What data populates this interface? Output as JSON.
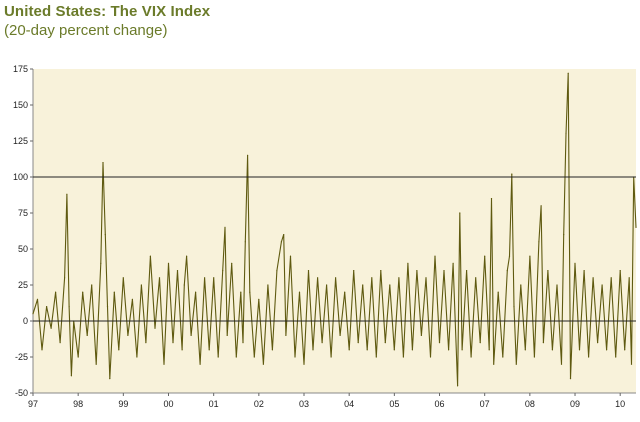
{
  "chart_data": {
    "type": "line",
    "title": "United States: The VIX Index",
    "subtitle": "(20-day percent change)",
    "xlabel": "",
    "ylabel": "",
    "ylim": [
      -50,
      175
    ],
    "y_ticks": [
      175,
      150,
      125,
      100,
      75,
      50,
      25,
      0,
      -25,
      -50
    ],
    "x_ticks": [
      "97",
      "98",
      "99",
      "00",
      "01",
      "02",
      "03",
      "04",
      "05",
      "06",
      "07",
      "08",
      "09",
      "10"
    ],
    "xlim": [
      1997.0,
      2010.35
    ],
    "reference_lines": [
      0,
      100
    ],
    "grid": false,
    "plot_background": "#f8f2da",
    "series": [
      {
        "color": "#5f5a10",
        "x": [
          1997.0,
          1997.1,
          1997.2,
          1997.3,
          1997.4,
          1997.5,
          1997.6,
          1997.7,
          1997.75,
          1997.8,
          1997.85,
          1997.9,
          1998.0,
          1998.1,
          1998.2,
          1998.3,
          1998.4,
          1998.5,
          1998.55,
          1998.6,
          1998.65,
          1998.7,
          1998.8,
          1998.9,
          1999.0,
          1999.1,
          1999.2,
          1999.3,
          1999.4,
          1999.5,
          1999.6,
          1999.7,
          1999.8,
          1999.9,
          2000.0,
          2000.1,
          2000.2,
          2000.3,
          2000.35,
          2000.4,
          2000.5,
          2000.6,
          2000.7,
          2000.8,
          2000.9,
          2001.0,
          2001.1,
          2001.2,
          2001.25,
          2001.3,
          2001.4,
          2001.5,
          2001.6,
          2001.65,
          2001.7,
          2001.75,
          2001.8,
          2001.9,
          2002.0,
          2002.1,
          2002.2,
          2002.3,
          2002.4,
          2002.5,
          2002.55,
          2002.6,
          2002.7,
          2002.8,
          2002.9,
          2003.0,
          2003.1,
          2003.2,
          2003.3,
          2003.4,
          2003.5,
          2003.6,
          2003.7,
          2003.8,
          2003.9,
          2004.0,
          2004.1,
          2004.2,
          2004.3,
          2004.4,
          2004.5,
          2004.6,
          2004.7,
          2004.8,
          2004.9,
          2005.0,
          2005.1,
          2005.2,
          2005.3,
          2005.4,
          2005.5,
          2005.6,
          2005.7,
          2005.8,
          2005.9,
          2006.0,
          2006.1,
          2006.2,
          2006.3,
          2006.4,
          2006.45,
          2006.5,
          2006.6,
          2006.7,
          2006.8,
          2006.9,
          2007.0,
          2007.1,
          2007.15,
          2007.2,
          2007.3,
          2007.4,
          2007.5,
          2007.55,
          2007.6,
          2007.65,
          2007.7,
          2007.8,
          2007.9,
          2008.0,
          2008.1,
          2008.2,
          2008.25,
          2008.3,
          2008.4,
          2008.5,
          2008.6,
          2008.7,
          2008.75,
          2008.8,
          2008.85,
          2008.9,
          2009.0,
          2009.1,
          2009.2,
          2009.3,
          2009.4,
          2009.5,
          2009.6,
          2009.7,
          2009.8,
          2009.9,
          2010.0,
          2010.1,
          2010.2,
          2010.25,
          2010.3,
          2010.35
        ],
        "values": [
          5,
          15,
          -20,
          10,
          -5,
          20,
          -15,
          30,
          88,
          10,
          -38,
          0,
          -25,
          20,
          -10,
          25,
          -30,
          40,
          110,
          60,
          10,
          -40,
          20,
          -20,
          30,
          -10,
          15,
          -25,
          25,
          -15,
          45,
          -5,
          30,
          -30,
          40,
          -15,
          35,
          -20,
          25,
          45,
          -10,
          20,
          -30,
          30,
          -20,
          30,
          -25,
          35,
          65,
          -10,
          40,
          -25,
          20,
          -15,
          55,
          115,
          20,
          -25,
          15,
          -30,
          25,
          -20,
          35,
          55,
          60,
          -10,
          45,
          -25,
          20,
          -30,
          35,
          -20,
          30,
          -15,
          25,
          -25,
          30,
          -10,
          20,
          -20,
          35,
          -15,
          25,
          -20,
          30,
          -25,
          35,
          -15,
          25,
          -20,
          30,
          -25,
          40,
          -20,
          35,
          -10,
          30,
          -25,
          45,
          -15,
          35,
          -20,
          40,
          -45,
          75,
          -20,
          35,
          -25,
          30,
          -15,
          45,
          -20,
          85,
          -30,
          20,
          -25,
          35,
          45,
          102,
          10,
          -30,
          25,
          -20,
          45,
          -25,
          55,
          80,
          -15,
          35,
          -20,
          25,
          -30,
          60,
          130,
          172,
          -40,
          40,
          -20,
          35,
          -25,
          30,
          -15,
          25,
          -20,
          30,
          -25,
          35,
          -20,
          30,
          -30,
          100,
          65
        ]
      }
    ]
  }
}
